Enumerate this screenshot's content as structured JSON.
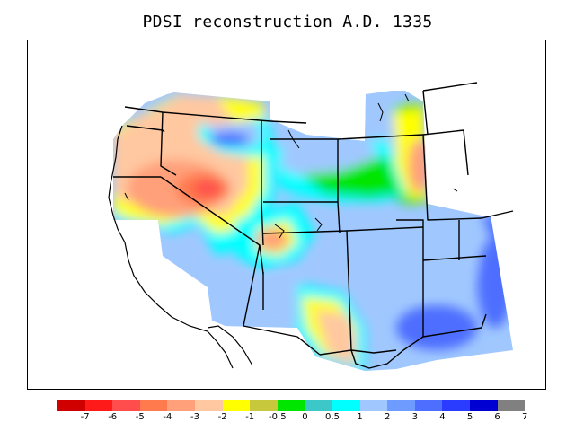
{
  "title": "PDSI reconstruction A.D. 1335",
  "colorbar": {
    "colors": [
      "#d10000",
      "#ff1a1a",
      "#ff4d4d",
      "#ff7a4d",
      "#ffa07a",
      "#ffc8a0",
      "#ffff00",
      "#c8c83c",
      "#00e600",
      "#3cc8c8",
      "#00ffff",
      "#a0c8ff",
      "#6e9bff",
      "#4d6eff",
      "#2a3cff",
      "#0000d2",
      "#808080"
    ],
    "labels": [
      "-7",
      "-6",
      "-5",
      "-4",
      "-3",
      "-2",
      "-1",
      "-0.5",
      "0",
      "0.5",
      "1",
      "2",
      "3",
      "4",
      "5",
      "6",
      "7"
    ]
  }
}
